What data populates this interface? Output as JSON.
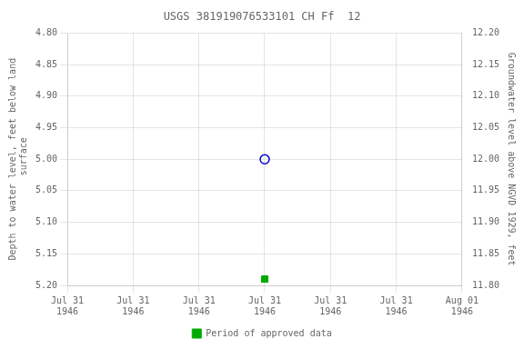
{
  "chart_data": {
    "type": "scatter",
    "title": "USGS 381919076533101 CH Ff  12",
    "y_label": "Depth to water level, feet below land\n surface",
    "y2_label": "Groundwater level above NGVD 1929, feet",
    "categories": [
      "Jul 31\n1946",
      "Jul 31\n1946",
      "Jul 31\n1946",
      "Jul 31\n1946",
      "Jul 31\n1946",
      "Jul 31\n1946",
      "Aug 01\n1946"
    ],
    "series": [
      {
        "color": "#0000cc",
        "marker": "open_circle",
        "line_style": "none",
        "values": [
          null,
          null,
          null,
          5.0,
          null,
          null,
          null
        ]
      },
      {
        "name": "Period of approved data",
        "color": "#00aa00",
        "marker": "square",
        "line_style": "none",
        "values": [
          null,
          null,
          null,
          5.19,
          null,
          null,
          null
        ]
      }
    ],
    "ylim": [
      5.2,
      4.8
    ],
    "yticks": [
      {
        "value": 4.8,
        "label": "4.80"
      },
      {
        "value": 4.85,
        "label": "4.85"
      },
      {
        "value": 4.9,
        "label": "4.90"
      },
      {
        "value": 4.95,
        "label": "4.95"
      },
      {
        "value": 5.0,
        "label": "5.00"
      },
      {
        "value": 5.05,
        "label": "5.05"
      },
      {
        "value": 5.1,
        "label": "5.10"
      },
      {
        "value": 5.15,
        "label": "5.15"
      },
      {
        "value": 5.2,
        "label": "5.20"
      }
    ],
    "y2lim": [
      11.8,
      12.2
    ],
    "y2ticks": [
      {
        "value": 11.8,
        "label": "11.80"
      },
      {
        "value": 11.85,
        "label": "11.85"
      },
      {
        "value": 11.9,
        "label": "11.90"
      },
      {
        "value": 11.95,
        "label": "11.95"
      },
      {
        "value": 12.0,
        "label": "12.00"
      },
      {
        "value": 12.05,
        "label": "12.05"
      },
      {
        "value": 12.1,
        "label": "12.10"
      },
      {
        "value": 12.15,
        "label": "12.15"
      },
      {
        "value": 12.2,
        "label": "12.20"
      }
    ],
    "grid": true,
    "legend": "bottom"
  }
}
